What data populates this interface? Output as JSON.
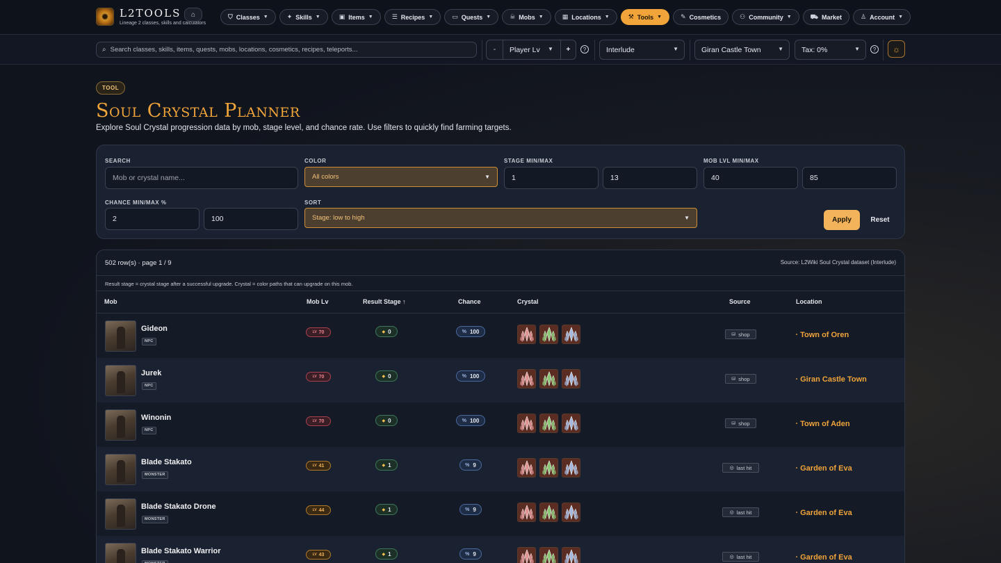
{
  "app": {
    "title": "L2TOOLS",
    "subtitle": "Lineage 2 classes, skills and calculators"
  },
  "nav": [
    {
      "label": "Classes",
      "icon": "shield-icon"
    },
    {
      "label": "Skills",
      "icon": "sparkle-icon"
    },
    {
      "label": "Items",
      "icon": "box-icon"
    },
    {
      "label": "Recipes",
      "icon": "scroll-icon"
    },
    {
      "label": "Quests",
      "icon": "book-icon"
    },
    {
      "label": "Mobs",
      "icon": "skull-icon"
    },
    {
      "label": "Locations",
      "icon": "map-icon"
    },
    {
      "label": "Tools",
      "icon": "wrench-icon",
      "active": true
    },
    {
      "label": "Cosmetics",
      "icon": "brush-icon"
    },
    {
      "label": "Community",
      "icon": "users-icon"
    },
    {
      "label": "Market",
      "icon": "cart-icon"
    },
    {
      "label": "Account",
      "icon": "user-icon"
    }
  ],
  "toolbar": {
    "search_placeholder": "Search classes, skills, items, quests, mobs, locations, cosmetics, recipes, teleports...",
    "minus": "-",
    "plus": "+",
    "player_lv": "Player Lv",
    "chronicle": "Interlude",
    "town": "Giran Castle Town",
    "tax": "Tax: 0%"
  },
  "page": {
    "badge": "TOOL",
    "title": "Soul Crystal Planner",
    "description": "Explore Soul Crystal progression data by mob, stage level, and chance rate. Use filters to quickly find farming targets."
  },
  "filters": {
    "search_label": "SEARCH",
    "search_placeholder": "Mob or crystal name...",
    "color_label": "COLOR",
    "color_value": "All colors",
    "stage_label": "STAGE MIN/MAX",
    "stage_min": "1",
    "stage_max": "13",
    "moblvl_label": "MOB LVL MIN/MAX",
    "moblvl_min": "40",
    "moblvl_max": "85",
    "chance_label": "CHANCE MIN/MAX %",
    "chance_min": "2",
    "chance_max": "100",
    "sort_label": "SORT",
    "sort_value": "Stage: low to high",
    "apply": "Apply",
    "reset": "Reset"
  },
  "results": {
    "count": "502 row(s) · page 1 / 9",
    "source": "Source: L2Wiki Soul Crystal dataset (Interlude)",
    "note": "Result stage = crystal stage after a successful upgrade. Crystal = color paths that can upgrade on this mob.",
    "columns": {
      "mob": "Mob",
      "lv": "Mob Lv",
      "stage": "Result Stage ↑",
      "chance": "Chance",
      "crystal": "Crystal",
      "source": "Source",
      "location": "Location"
    },
    "rows": [
      {
        "name": "Gideon",
        "type": "NPC",
        "lv": "70",
        "lv_color": "red",
        "stage": "0",
        "chance": "100",
        "source": "shop",
        "location": "Town of Oren"
      },
      {
        "name": "Jurek",
        "type": "NPC",
        "lv": "70",
        "lv_color": "red",
        "stage": "0",
        "chance": "100",
        "source": "shop",
        "location": "Giran Castle Town"
      },
      {
        "name": "Winonin",
        "type": "NPC",
        "lv": "70",
        "lv_color": "red",
        "stage": "0",
        "chance": "100",
        "source": "shop",
        "location": "Town of Aden"
      },
      {
        "name": "Blade Stakato",
        "type": "MONSTER",
        "lv": "41",
        "lv_color": "orange",
        "stage": "1",
        "chance": "9",
        "source": "last hit",
        "location": "Garden of Eva"
      },
      {
        "name": "Blade Stakato Drone",
        "type": "MONSTER",
        "lv": "44",
        "lv_color": "orange",
        "stage": "1",
        "chance": "9",
        "source": "last hit",
        "location": "Garden of Eva"
      },
      {
        "name": "Blade Stakato Warrior",
        "type": "MONSTER",
        "lv": "43",
        "lv_color": "orange",
        "stage": "1",
        "chance": "9",
        "source": "last hit",
        "location": "Garden of Eva"
      }
    ],
    "lv_prefix": "LV"
  },
  "colors": {
    "accent": "#f0a43a",
    "crystal_red": "#e89a9a",
    "crystal_green": "#8ed07a",
    "crystal_blue": "#a8c0e8"
  }
}
